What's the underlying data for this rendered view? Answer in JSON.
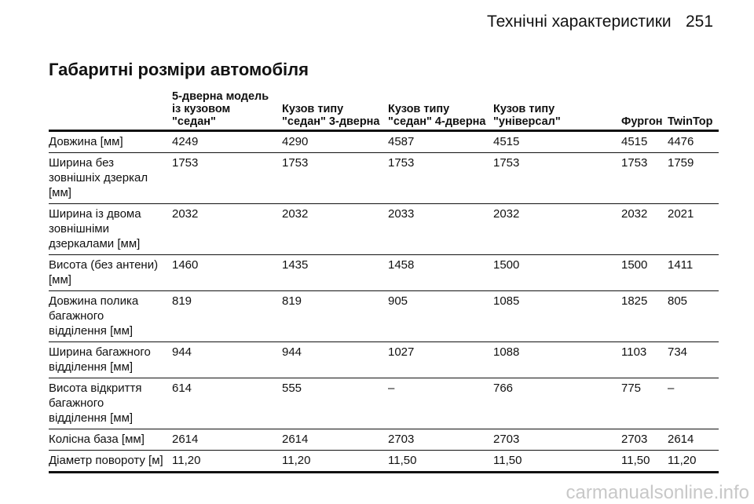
{
  "header": {
    "title": "Технічні характеристики",
    "page": "251"
  },
  "section_title": "Габаритні розміри автомобіля",
  "table": {
    "columns": [
      "",
      "5-дверна модель\nіз кузовом\n\"седан\"",
      "Кузов типу\n\"седан\" 3-дверна",
      "Кузов типу\n\"седан\" 4-дверна",
      "Кузов типу\n\"універсал\"",
      "Фургон",
      "TwinTop"
    ],
    "rows": [
      [
        "Довжина [мм]",
        "4249",
        "4290",
        "4587",
        "4515",
        "4515",
        "4476"
      ],
      [
        "Ширина без\nзовнішніх дзеркал\n[мм]",
        "1753",
        "1753",
        "1753",
        "1753",
        "1753",
        "1759"
      ],
      [
        "Ширина із двома\nзовнішніми\nдзеркалами [мм]",
        "2032",
        "2032",
        "2033",
        "2032",
        "2032",
        "2021"
      ],
      [
        "Висота (без антени)\n[мм]",
        "1460",
        "1435",
        "1458",
        "1500",
        "1500",
        "1411"
      ],
      [
        "Довжина полика\nбагажного\nвідділення [мм]",
        "819",
        "819",
        "905",
        "1085",
        "1825",
        "805"
      ],
      [
        "Ширина багажного\nвідділення [мм]",
        "944",
        "944",
        "1027",
        "1088",
        "1103",
        "734"
      ],
      [
        "Висота відкриття\nбагажного\nвідділення [мм]",
        "614",
        "555",
        "–",
        "766",
        "775",
        "–"
      ],
      [
        "Колісна база [мм]",
        "2614",
        "2614",
        "2703",
        "2703",
        "2703",
        "2614"
      ],
      [
        "Діаметр повороту [м]",
        "11,20",
        "11,20",
        "11,50",
        "11,50",
        "11,50",
        "11,20"
      ]
    ]
  },
  "watermark": "carmanualsonline.info"
}
